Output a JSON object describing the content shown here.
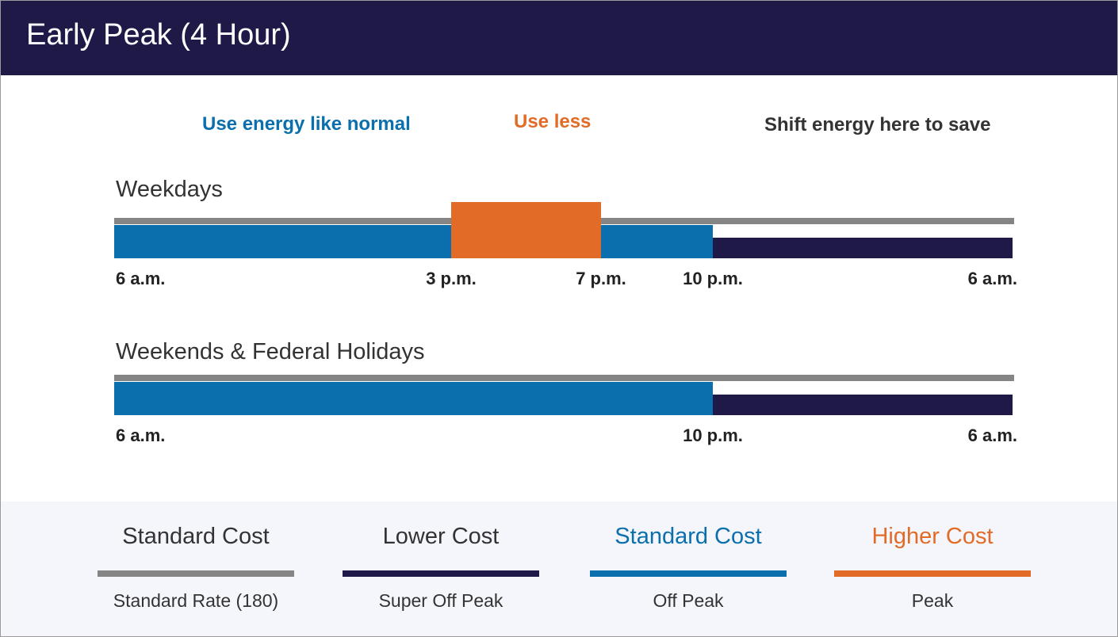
{
  "header": {
    "title": "Early Peak (4 Hour)"
  },
  "cues": {
    "normal": "Use energy like normal",
    "less": "Use less",
    "shift": "Shift energy here to save"
  },
  "colors": {
    "standard_rate": "#858585",
    "super_off_peak": "#1e1947",
    "off_peak": "#0a6fac",
    "peak": "#e16b27",
    "header_bg": "#1e1947"
  },
  "schedules": [
    {
      "label": "Weekdays",
      "segments": [
        {
          "period": "off_peak",
          "start": 0,
          "end": 9
        },
        {
          "period": "peak",
          "start": 9,
          "end": 13
        },
        {
          "period": "off_peak",
          "start": 13,
          "end": 16
        },
        {
          "period": "super_off_peak",
          "start": 16,
          "end": 24
        }
      ],
      "ticks": [
        {
          "label": "6 a.m.",
          "hour": 0
        },
        {
          "label": "3 p.m.",
          "hour": 9
        },
        {
          "label": "7 p.m.",
          "hour": 13
        },
        {
          "label": "10 p.m.",
          "hour": 16
        },
        {
          "label": "6 a.m.",
          "hour": 24
        }
      ]
    },
    {
      "label": "Weekends & Federal Holidays",
      "segments": [
        {
          "period": "off_peak",
          "start": 0,
          "end": 16
        },
        {
          "period": "super_off_peak",
          "start": 16,
          "end": 24
        }
      ],
      "ticks": [
        {
          "label": "6 a.m.",
          "hour": 0
        },
        {
          "label": "10 p.m.",
          "hour": 16
        },
        {
          "label": "6 a.m.",
          "hour": 24
        }
      ]
    }
  ],
  "legend": [
    {
      "cost": "Standard Cost",
      "period": "Standard Rate (180)",
      "key": "standard_rate"
    },
    {
      "cost": "Lower Cost",
      "period": "Super Off Peak",
      "key": "super_off_peak"
    },
    {
      "cost": "Standard Cost",
      "period": "Off Peak",
      "key": "off_peak"
    },
    {
      "cost": "Higher Cost",
      "period": "Peak",
      "key": "peak"
    }
  ]
}
